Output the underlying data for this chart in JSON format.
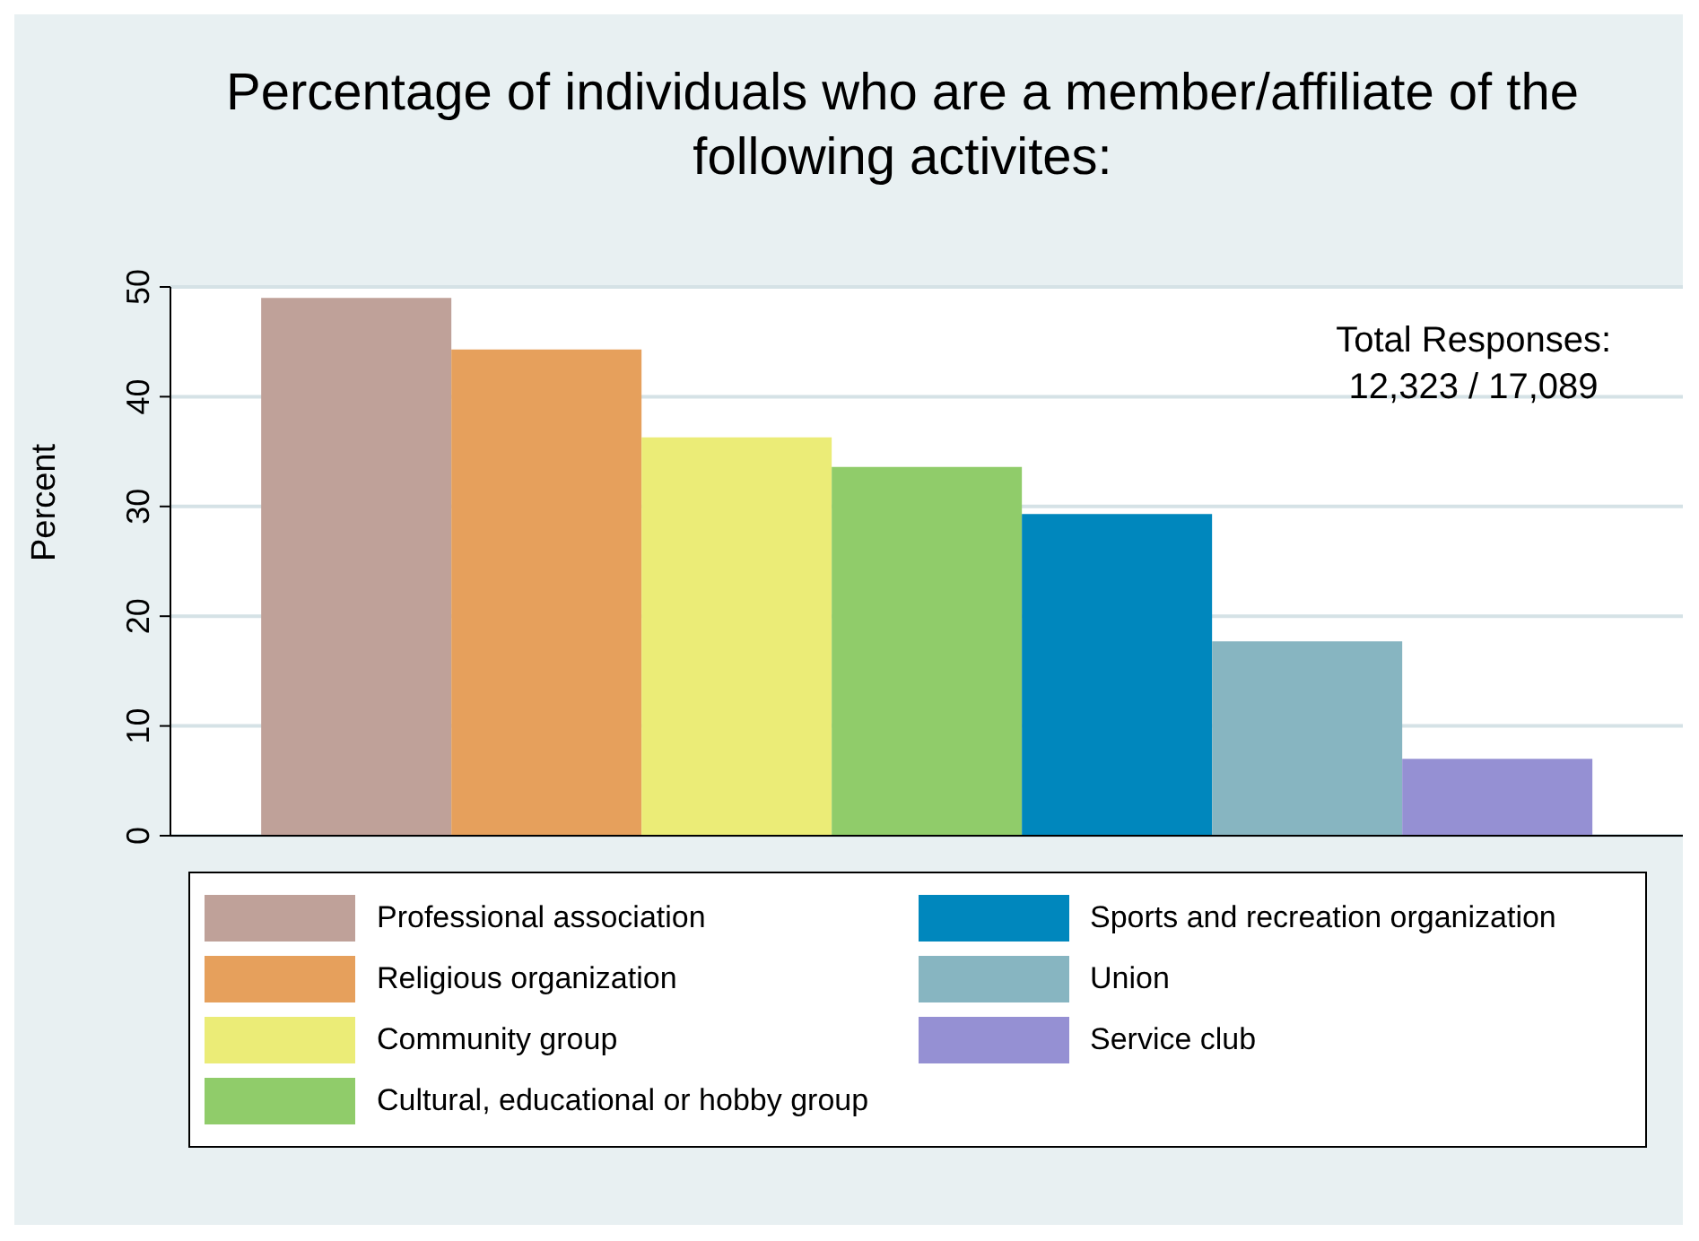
{
  "chart_data": {
    "type": "bar",
    "title": "Percentage of individuals who are a member/affiliate of the following activites:",
    "ylabel": "Percent",
    "categories": [
      null
    ],
    "series": [
      {
        "name": "Professional association",
        "color": "#bfa199",
        "values": [
          49.0
        ]
      },
      {
        "name": "Religious organization",
        "color": "#e6a05c",
        "values": [
          44.3
        ]
      },
      {
        "name": "Community group",
        "color": "#ebec77",
        "values": [
          36.3
        ]
      },
      {
        "name": "Cultural, educational or hobby group",
        "color": "#90cc6a",
        "values": [
          33.6
        ]
      },
      {
        "name": "Sports and recreation organization",
        "color": "#0087bd",
        "values": [
          29.3
        ]
      },
      {
        "name": "Union",
        "color": "#87b5c1",
        "values": [
          17.7
        ]
      },
      {
        "name": "Service club",
        "color": "#9590d3",
        "values": [
          7.0
        ]
      }
    ],
    "ylim": [
      0,
      50
    ],
    "yticks": [
      0,
      10,
      20,
      30,
      40,
      50
    ],
    "grid": "y",
    "legend": "bottom",
    "annotations": [
      "Total Responses:\n12,323 / 17,089"
    ]
  }
}
